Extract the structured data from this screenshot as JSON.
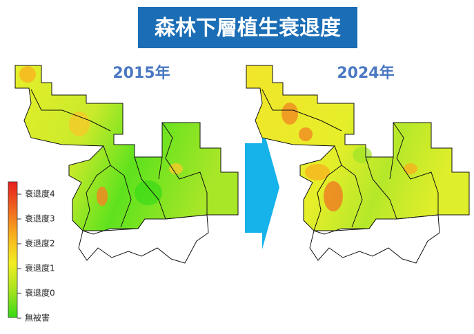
{
  "title": "森林下層植生衰退度",
  "maps": [
    {
      "year": "2015年"
    },
    {
      "year": "2024年"
    }
  ],
  "legend": {
    "labels": [
      "衰退度4",
      "衰退度3",
      "衰退度2",
      "衰退度1",
      "衰退度0",
      "無被害"
    ]
  }
}
